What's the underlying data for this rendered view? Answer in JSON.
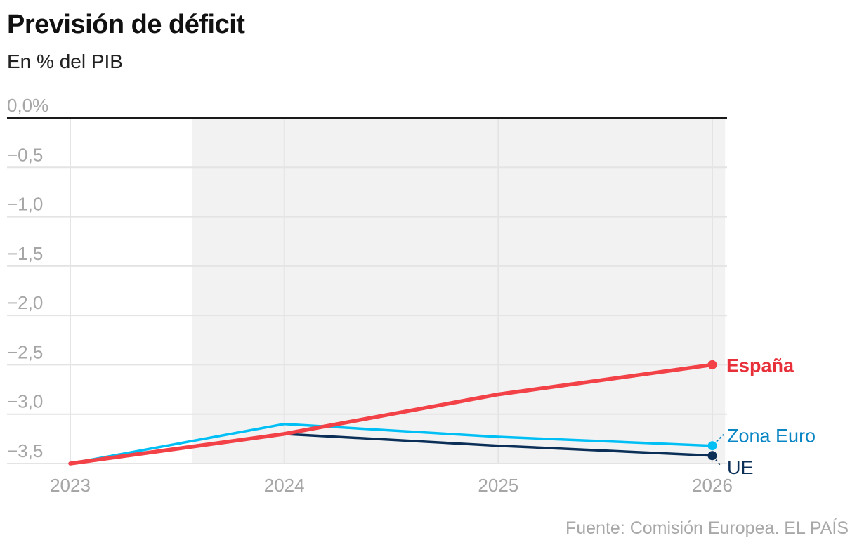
{
  "header": {
    "title": "Previsión de déficit",
    "subtitle": "En % del PIB"
  },
  "footer": {
    "source": "Fuente: Comisión Europea",
    "separator": ".",
    "brand": "EL PAÍS"
  },
  "chart_data": {
    "type": "line",
    "title": "Previsión de déficit",
    "subtitle": "En % del PIB",
    "xlabel": "",
    "ylabel": "En % del PIB",
    "x": [
      2023,
      2024,
      2025,
      2026
    ],
    "x_tick_labels": [
      "2023",
      "2024",
      "2025",
      "2026"
    ],
    "ylim": [
      -3.5,
      0.0
    ],
    "y_ticks": [
      0.0,
      -0.5,
      -1.0,
      -1.5,
      -2.0,
      -2.5,
      -3.0,
      -3.5
    ],
    "y_tick_labels": [
      "0,0%",
      "−0,5",
      "−1,0",
      "−1,5",
      "−2,0",
      "−2,5",
      "−3,0",
      "−3,5"
    ],
    "shaded_x_range": [
      2023.57,
      2026.06
    ],
    "grid": true,
    "series": [
      {
        "name": "UE",
        "label": "UE",
        "color": "#0b2f57",
        "values": [
          -3.5,
          -3.2,
          -3.32,
          -3.42
        ]
      },
      {
        "name": "Zona Euro",
        "label": "Zona Euro",
        "color": "#00bff5",
        "values": [
          -3.5,
          -3.1,
          -3.23,
          -3.32
        ]
      },
      {
        "name": "España",
        "label": "España",
        "color": "#f24147",
        "values": [
          -3.5,
          -3.2,
          -2.8,
          -2.5
        ]
      }
    ],
    "label_colors": {
      "UE": "#0b2f57",
      "Zona Euro": "#0a86c4",
      "España": "#e8303a"
    }
  }
}
